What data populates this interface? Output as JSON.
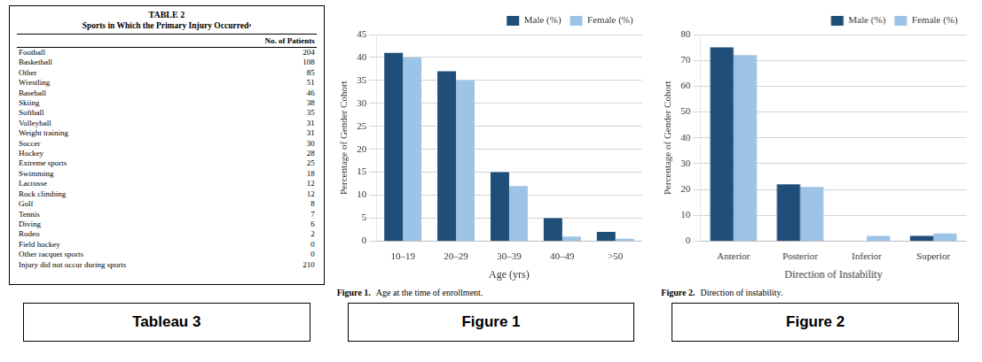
{
  "chart_data": [
    {
      "type": "table",
      "title": "TABLE 2",
      "subtitle": "Sports in Which the Primary Injury Occurredᵃ",
      "ylabel": "No. of Patients",
      "categories": [
        "Football",
        "Basketball",
        "Other",
        "Wrestling",
        "Baseball",
        "Skiing",
        "Softball",
        "Volleyball",
        "Weight training",
        "Soccer",
        "Hockey",
        "Extreme sports",
        "Swimming",
        "Lacrosse",
        "Rock climbing",
        "Golf",
        "Tennis",
        "Diving",
        "Rodeo",
        "Field hockey",
        "Other racquet sports",
        "Injury did not occur during sports"
      ],
      "values": [
        204,
        108,
        85,
        51,
        46,
        38,
        35,
        31,
        31,
        30,
        28,
        25,
        18,
        12,
        12,
        8,
        7,
        6,
        2,
        0,
        0,
        210
      ],
      "annotations": [
        "Tableau 3"
      ]
    },
    {
      "type": "bar",
      "title": "Figure 1.",
      "subtitle": "Age at the time of enrollment.",
      "xlabel": "Age (yrs)",
      "ylabel": "Percentage of Gender Cohort",
      "categories": [
        "10–19",
        "20–29",
        "30–39",
        "40–49",
        ">50"
      ],
      "series": [
        {
          "name": "Male (%)",
          "color": "#1F4E79",
          "values": [
            41,
            37,
            15,
            5,
            2
          ]
        },
        {
          "name": "Female (%)",
          "color": "#9DC3E6",
          "values": [
            40,
            35,
            12,
            1,
            0.5
          ]
        }
      ],
      "ylim": [
        0,
        45
      ],
      "yticks": [
        0,
        5,
        10,
        15,
        20,
        25,
        30,
        35,
        40,
        45
      ],
      "grid": true,
      "legend": "upper right",
      "annotations": [
        "Figure 1"
      ]
    },
    {
      "type": "bar",
      "title": "Figure 2.",
      "subtitle": "Direction of instability.",
      "xlabel": "Direction of Instability",
      "ylabel": "Percentage of Gender Cohort",
      "categories": [
        "Anterior",
        "Posterior",
        "Inferior",
        "Superior"
      ],
      "series": [
        {
          "name": "Male (%)",
          "color": "#1F4E79",
          "values": [
            75,
            22,
            0,
            2
          ]
        },
        {
          "name": "Female (%)",
          "color": "#9DC3E6",
          "values": [
            72,
            21,
            2,
            3
          ]
        }
      ],
      "ylim": [
        0,
        80
      ],
      "yticks": [
        0,
        10,
        20,
        30,
        40,
        50,
        60,
        70,
        80
      ],
      "grid": true,
      "legend": "upper right",
      "annotations": [
        "Figure 2"
      ]
    }
  ]
}
